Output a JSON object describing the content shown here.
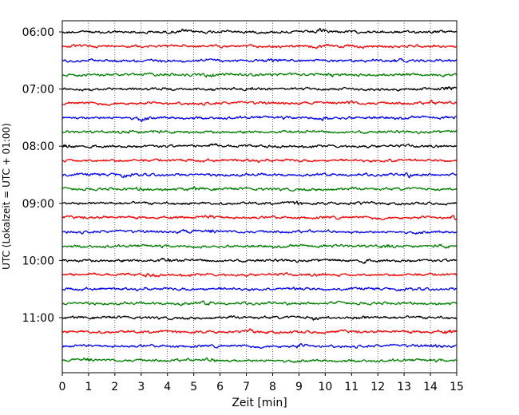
{
  "chart_data": {
    "type": "line",
    "chart_kind": "helicorder seismogram",
    "xlabel": "Zeit  [min]",
    "ylabel": "UTC (Lokalzeit = UTC + 01:00)",
    "xlim": [
      0,
      15
    ],
    "xticks": [
      "0",
      "1",
      "2",
      "3",
      "4",
      "5",
      "6",
      "7",
      "8",
      "9",
      "10",
      "11",
      "12",
      "13",
      "14",
      "15"
    ],
    "x_grid": "dotted vertical lines at each minute",
    "y_tick_labels": [
      "06:00",
      "07:00",
      "08:00",
      "09:00",
      "10:00",
      "11:00"
    ],
    "trace_minutes": 15,
    "trace_count": 24,
    "start_utc": "06:00",
    "end_utc": "12:00",
    "color_cycle": [
      "#000000",
      "#ff0000",
      "#0000ff",
      "#008000"
    ],
    "traces": [
      {
        "start": "06:00",
        "color": "#000000"
      },
      {
        "start": "06:15",
        "color": "#ff0000"
      },
      {
        "start": "06:30",
        "color": "#0000ff"
      },
      {
        "start": "06:45",
        "color": "#008000"
      },
      {
        "start": "07:00",
        "color": "#000000"
      },
      {
        "start": "07:15",
        "color": "#ff0000"
      },
      {
        "start": "07:30",
        "color": "#0000ff"
      },
      {
        "start": "07:45",
        "color": "#008000"
      },
      {
        "start": "08:00",
        "color": "#000000"
      },
      {
        "start": "08:15",
        "color": "#ff0000"
      },
      {
        "start": "08:30",
        "color": "#0000ff"
      },
      {
        "start": "08:45",
        "color": "#008000"
      },
      {
        "start": "09:00",
        "color": "#000000"
      },
      {
        "start": "09:15",
        "color": "#ff0000"
      },
      {
        "start": "09:30",
        "color": "#0000ff"
      },
      {
        "start": "09:45",
        "color": "#008000"
      },
      {
        "start": "10:00",
        "color": "#000000"
      },
      {
        "start": "10:15",
        "color": "#ff0000"
      },
      {
        "start": "10:30",
        "color": "#0000ff"
      },
      {
        "start": "10:45",
        "color": "#008000"
      },
      {
        "start": "11:00",
        "color": "#000000"
      },
      {
        "start": "11:15",
        "color": "#ff0000"
      },
      {
        "start": "11:30",
        "color": "#0000ff"
      },
      {
        "start": "11:45",
        "color": "#008000"
      }
    ]
  }
}
